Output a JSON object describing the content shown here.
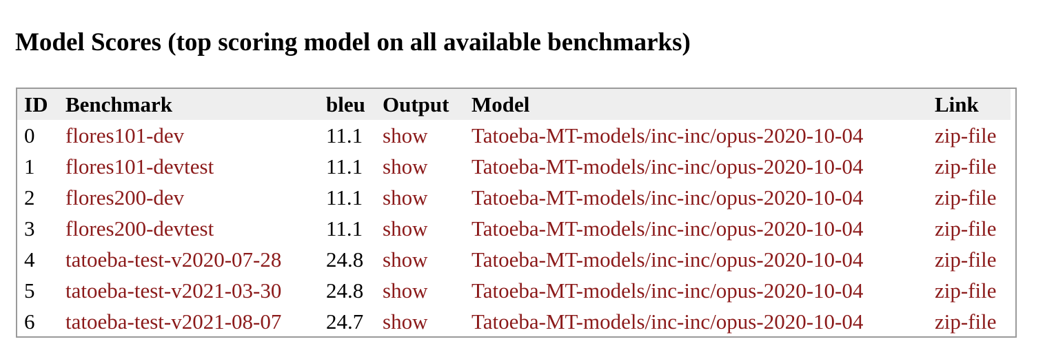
{
  "page": {
    "title": "Model Scores (top scoring model on all available benchmarks)"
  },
  "table": {
    "headers": {
      "id": "ID",
      "benchmark": "Benchmark",
      "bleu": "bleu",
      "output": "Output",
      "model": "Model",
      "link": "Link"
    },
    "rows": [
      {
        "id": "0",
        "benchmark": "flores101-dev",
        "bleu": "11.1",
        "output": "show",
        "model": "Tatoeba-MT-models/inc-inc/opus-2020-10-04",
        "link": "zip-file"
      },
      {
        "id": "1",
        "benchmark": "flores101-devtest",
        "bleu": "11.1",
        "output": "show",
        "model": "Tatoeba-MT-models/inc-inc/opus-2020-10-04",
        "link": "zip-file"
      },
      {
        "id": "2",
        "benchmark": "flores200-dev",
        "bleu": "11.1",
        "output": "show",
        "model": "Tatoeba-MT-models/inc-inc/opus-2020-10-04",
        "link": "zip-file"
      },
      {
        "id": "3",
        "benchmark": "flores200-devtest",
        "bleu": "11.1",
        "output": "show",
        "model": "Tatoeba-MT-models/inc-inc/opus-2020-10-04",
        "link": "zip-file"
      },
      {
        "id": "4",
        "benchmark": "tatoeba-test-v2020-07-28",
        "bleu": "24.8",
        "output": "show",
        "model": "Tatoeba-MT-models/inc-inc/opus-2020-10-04",
        "link": "zip-file"
      },
      {
        "id": "5",
        "benchmark": "tatoeba-test-v2021-03-30",
        "bleu": "24.8",
        "output": "show",
        "model": "Tatoeba-MT-models/inc-inc/opus-2020-10-04",
        "link": "zip-file"
      },
      {
        "id": "6",
        "benchmark": "tatoeba-test-v2021-08-07",
        "bleu": "24.7",
        "output": "show",
        "model": "Tatoeba-MT-models/inc-inc/opus-2020-10-04",
        "link": "zip-file"
      }
    ]
  },
  "colors": {
    "link": "#8b1a1a",
    "header_bg": "#eeeeee",
    "border": "#9a9a9a"
  }
}
